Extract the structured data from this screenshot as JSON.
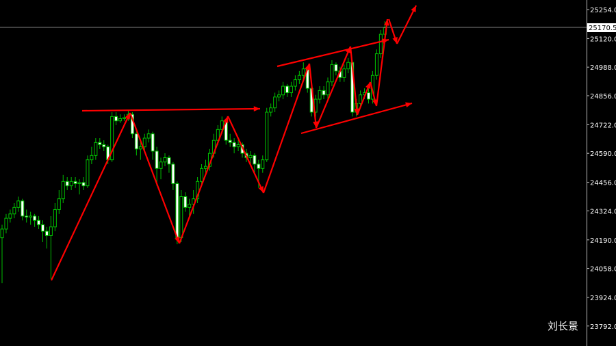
{
  "chart_data": {
    "type": "candlestick",
    "title": "",
    "xlabel": "",
    "ylabel": "",
    "ylim": [
      23792,
      25290
    ],
    "y_ticks": [
      "25254.0",
      "25120.0",
      "24988.0",
      "24856.0",
      "24722.0",
      "24590.0",
      "24456.0",
      "24324.0",
      "24190.0",
      "24058.0",
      "23924.0",
      "23792.0"
    ],
    "current_price": "25170.5",
    "colors": {
      "background": "#000000",
      "bull_outline": "#00c000",
      "bear_body": "#ffffff",
      "wick": "#00c000",
      "annotation": "#ff0000",
      "price_line": "#808080"
    },
    "ohlc": [
      [
        24200,
        24260,
        23990,
        24240
      ],
      [
        24240,
        24310,
        24220,
        24290
      ],
      [
        24290,
        24330,
        24270,
        24310
      ],
      [
        24310,
        24360,
        24290,
        24340
      ],
      [
        24340,
        24390,
        24320,
        24370
      ],
      [
        24370,
        24380,
        24280,
        24300
      ],
      [
        24300,
        24330,
        24270,
        24295
      ],
      [
        24295,
        24320,
        24260,
        24300
      ],
      [
        24300,
        24310,
        24250,
        24280
      ],
      [
        24280,
        24300,
        24240,
        24260
      ],
      [
        24260,
        24280,
        24180,
        24230
      ],
      [
        24230,
        24250,
        24150,
        24210
      ],
      [
        24210,
        24300,
        24010,
        24250
      ],
      [
        24250,
        24360,
        24230,
        24330
      ],
      [
        24330,
        24420,
        24310,
        24380
      ],
      [
        24380,
        24490,
        24360,
        24460
      ],
      [
        24460,
        24480,
        24420,
        24440
      ],
      [
        24440,
        24480,
        24420,
        24460
      ],
      [
        24460,
        24480,
        24430,
        24450
      ],
      [
        24450,
        24470,
        24400,
        24455
      ],
      [
        24455,
        24480,
        24420,
        24440
      ],
      [
        24440,
        24580,
        24430,
        24560
      ],
      [
        24560,
        24620,
        24540,
        24580
      ],
      [
        24580,
        24660,
        24560,
        24640
      ],
      [
        24640,
        24660,
        24610,
        24630
      ],
      [
        24630,
        24650,
        24600,
        24620
      ],
      [
        24620,
        24630,
        24540,
        24560
      ],
      [
        24560,
        24780,
        24550,
        24760
      ],
      [
        24760,
        24780,
        24720,
        24740
      ],
      [
        24740,
        24770,
        24730,
        24750
      ],
      [
        24750,
        24770,
        24740,
        24755
      ],
      [
        24755,
        24790,
        24740,
        24770
      ],
      [
        24770,
        24780,
        24660,
        24680
      ],
      [
        24680,
        24700,
        24580,
        24610
      ],
      [
        24610,
        24650,
        24560,
        24620
      ],
      [
        24620,
        24680,
        24600,
        24660
      ],
      [
        24660,
        24700,
        24640,
        24680
      ],
      [
        24680,
        24690,
        24560,
        24600
      ],
      [
        24600,
        24620,
        24440,
        24520
      ],
      [
        24520,
        24570,
        24470,
        24550
      ],
      [
        24550,
        24590,
        24530,
        24570
      ],
      [
        24570,
        24580,
        24500,
        24540
      ],
      [
        24540,
        24550,
        24420,
        24450
      ],
      [
        24450,
        24460,
        24170,
        24200
      ],
      [
        24200,
        24420,
        24180,
        24390
      ],
      [
        24390,
        24410,
        24320,
        24340
      ],
      [
        24340,
        24380,
        24300,
        24355
      ],
      [
        24355,
        24420,
        24310,
        24380
      ],
      [
        24380,
        24480,
        24360,
        24460
      ],
      [
        24460,
        24540,
        24440,
        24520
      ],
      [
        24520,
        24560,
        24500,
        24530
      ],
      [
        24530,
        24610,
        24510,
        24590
      ],
      [
        24590,
        24680,
        24570,
        24650
      ],
      [
        24650,
        24720,
        24630,
        24700
      ],
      [
        24700,
        24760,
        24680,
        24740
      ],
      [
        24740,
        24750,
        24630,
        24650
      ],
      [
        24650,
        24680,
        24620,
        24640
      ],
      [
        24640,
        24660,
        24590,
        24620
      ],
      [
        24620,
        24650,
        24600,
        24630
      ],
      [
        24630,
        24640,
        24570,
        24590
      ],
      [
        24590,
        24610,
        24550,
        24570
      ],
      [
        24570,
        24600,
        24540,
        24580
      ],
      [
        24580,
        24590,
        24500,
        24540
      ],
      [
        24540,
        24560,
        24430,
        24520
      ],
      [
        24520,
        24580,
        24500,
        24560
      ],
      [
        24560,
        24800,
        24550,
        24780
      ],
      [
        24780,
        24820,
        24760,
        24800
      ],
      [
        24800,
        24870,
        24780,
        24850
      ],
      [
        24850,
        24880,
        24830,
        24860
      ],
      [
        24860,
        24920,
        24840,
        24900
      ],
      [
        24900,
        24910,
        24850,
        24870
      ],
      [
        24870,
        24920,
        24850,
        24900
      ],
      [
        24900,
        24950,
        24880,
        24930
      ],
      [
        24930,
        24970,
        24910,
        24950
      ],
      [
        24950,
        25010,
        24930,
        24980
      ],
      [
        24980,
        24990,
        24870,
        24890
      ],
      [
        24890,
        24900,
        24760,
        24780
      ],
      [
        24780,
        24860,
        24760,
        24840
      ],
      [
        24840,
        24900,
        24820,
        24880
      ],
      [
        24880,
        24900,
        24840,
        24860
      ],
      [
        24860,
        24940,
        24840,
        24920
      ],
      [
        24920,
        25020,
        24900,
        25000
      ],
      [
        25000,
        25010,
        24950,
        24970
      ],
      [
        24970,
        24990,
        24920,
        24940
      ],
      [
        24940,
        25000,
        24920,
        24980
      ],
      [
        24980,
        25030,
        24960,
        25010
      ],
      [
        25010,
        25020,
        24760,
        24780
      ],
      [
        24780,
        24840,
        24760,
        24820
      ],
      [
        24820,
        24880,
        24800,
        24860
      ],
      [
        24860,
        24890,
        24840,
        24870
      ],
      [
        24870,
        24890,
        24820,
        24840
      ],
      [
        24840,
        24970,
        24820,
        24950
      ],
      [
        24950,
        25070,
        24930,
        25050
      ],
      [
        25050,
        25160,
        25030,
        25140
      ],
      [
        25140,
        25200,
        25120,
        25170
      ]
    ]
  },
  "watermark": "刘长景"
}
